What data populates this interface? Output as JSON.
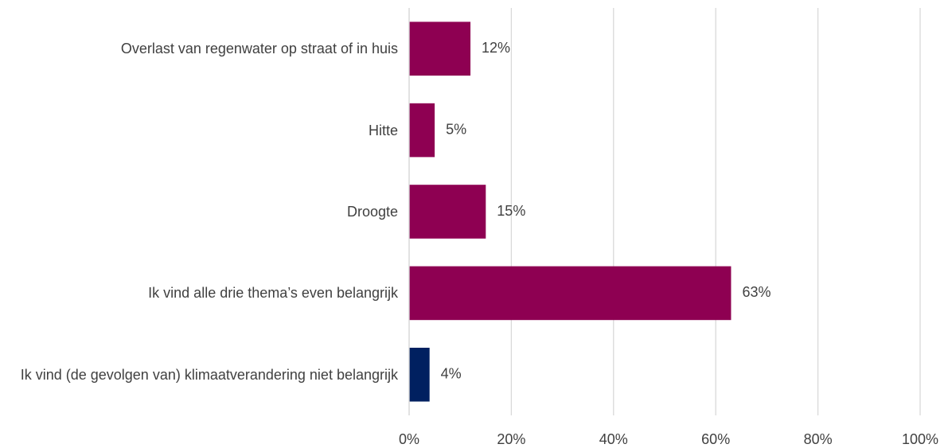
{
  "chart_data": {
    "type": "bar",
    "orientation": "horizontal",
    "categories": [
      "Overlast van regenwater op straat of in huis",
      "Hitte",
      "Droogte",
      "Ik vind alle drie thema’s even belangrijk",
      "Ik vind (de gevolgen van) klimaatverandering niet belangrijk"
    ],
    "values": [
      12,
      5,
      15,
      63,
      4
    ],
    "value_labels": [
      "12%",
      "5%",
      "15%",
      "63%",
      "4%"
    ],
    "colors": [
      "#8e0052",
      "#8e0052",
      "#8e0052",
      "#8e0052",
      "#002060"
    ],
    "xlim": [
      0,
      100
    ],
    "xticks": [
      {
        "value": 0,
        "label": "0%"
      },
      {
        "value": 20,
        "label": "20%"
      },
      {
        "value": 40,
        "label": "40%"
      },
      {
        "value": 60,
        "label": "60%"
      },
      {
        "value": 80,
        "label": "80%"
      },
      {
        "value": 100,
        "label": "100%"
      }
    ],
    "grid": true
  }
}
